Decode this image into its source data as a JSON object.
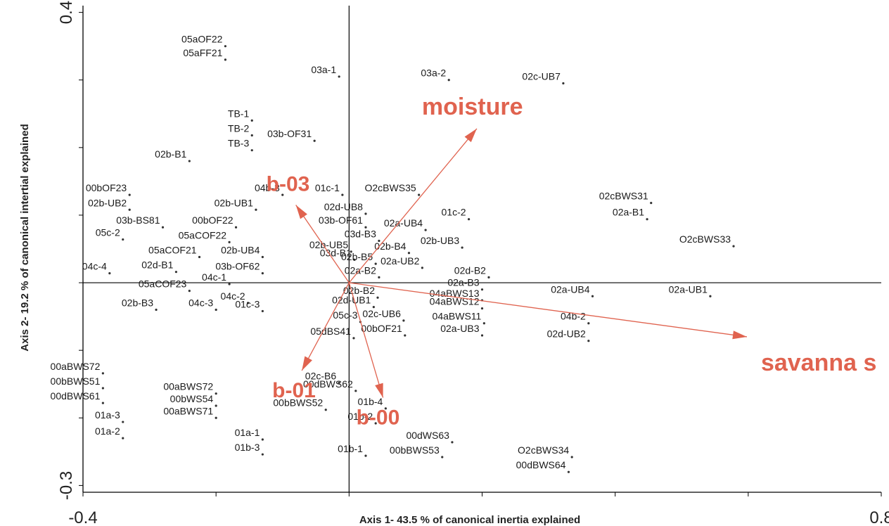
{
  "chart_data": {
    "type": "scatter",
    "xlabel": "Axis 1- 43.5 % of canonical inertia explained",
    "ylabel": "Axis 2- 19.2 % of canonical intertial explained",
    "xlim": [
      -0.4,
      0.8
    ],
    "ylim": [
      -0.31,
      0.41
    ],
    "x_ticks": [
      -0.4,
      0.8
    ],
    "y_ticks": [
      0.4,
      -0.3
    ],
    "accent_color": "#e0634f",
    "vectors": [
      {
        "name": "moisture",
        "x": 0.192,
        "y": 0.228
      },
      {
        "name": "savanna s",
        "x": 0.598,
        "y": -0.08
      },
      {
        "name": "b-03",
        "x": -0.08,
        "y": 0.115
      },
      {
        "name": "b-01",
        "x": -0.071,
        "y": -0.13
      },
      {
        "name": "b-00",
        "x": 0.051,
        "y": -0.17
      }
    ],
    "points": [
      {
        "label": "05aOF22",
        "x": -0.186,
        "y": 0.35
      },
      {
        "label": "05aFF21",
        "x": -0.186,
        "y": 0.33
      },
      {
        "label": "03a-1",
        "x": -0.015,
        "y": 0.305
      },
      {
        "label": "03a-2",
        "x": 0.15,
        "y": 0.3
      },
      {
        "label": "02c-UB7",
        "x": 0.322,
        "y": 0.295
      },
      {
        "label": "TB-1",
        "x": -0.146,
        "y": 0.24
      },
      {
        "label": "TB-2",
        "x": -0.146,
        "y": 0.218
      },
      {
        "label": "TB-3",
        "x": -0.146,
        "y": 0.196
      },
      {
        "label": "03b-OF31",
        "x": -0.052,
        "y": 0.21
      },
      {
        "label": "02b-B1",
        "x": -0.24,
        "y": 0.18
      },
      {
        "label": "00bOF23",
        "x": -0.33,
        "y": 0.13
      },
      {
        "label": "04b-3",
        "x": -0.1,
        "y": 0.13
      },
      {
        "label": "01c-1",
        "x": -0.01,
        "y": 0.13
      },
      {
        "label": "O2cBWS35",
        "x": 0.105,
        "y": 0.13
      },
      {
        "label": "02b-UB2",
        "x": -0.33,
        "y": 0.108
      },
      {
        "label": "02b-UB1",
        "x": -0.14,
        "y": 0.108
      },
      {
        "label": "02d-UB8",
        "x": 0.025,
        "y": 0.102
      },
      {
        "label": "01c-2",
        "x": 0.18,
        "y": 0.094
      },
      {
        "label": "02cBWS31",
        "x": 0.454,
        "y": 0.118
      },
      {
        "label": "02a-B1",
        "x": 0.448,
        "y": 0.094
      },
      {
        "label": "03b-BS81",
        "x": -0.28,
        "y": 0.082
      },
      {
        "label": "00bOF22",
        "x": -0.17,
        "y": 0.082
      },
      {
        "label": "03b-OF61",
        "x": 0.025,
        "y": 0.082
      },
      {
        "label": "02a-UB4",
        "x": 0.115,
        "y": 0.078
      },
      {
        "label": "05c-2",
        "x": -0.34,
        "y": 0.064
      },
      {
        "label": "05aCOF22",
        "x": -0.18,
        "y": 0.06
      },
      {
        "label": "03d-B3",
        "x": 0.045,
        "y": 0.062
      },
      {
        "label": "02b-UB5",
        "x": 0.003,
        "y": 0.046
      },
      {
        "label": "02b-B4",
        "x": 0.09,
        "y": 0.044
      },
      {
        "label": "02b-UB3",
        "x": 0.17,
        "y": 0.052
      },
      {
        "label": "O2cBWS33",
        "x": 0.578,
        "y": 0.054
      },
      {
        "label": "05aCOF21",
        "x": -0.225,
        "y": 0.038
      },
      {
        "label": "02b-UB4",
        "x": -0.13,
        "y": 0.038
      },
      {
        "label": "03d-B1",
        "x": 0.008,
        "y": 0.034
      },
      {
        "label": "02b-B5",
        "x": 0.04,
        "y": 0.028
      },
      {
        "label": "02a-UB2",
        "x": 0.11,
        "y": 0.022
      },
      {
        "label": "04c-4",
        "x": -0.36,
        "y": 0.014
      },
      {
        "label": "02d-B1",
        "x": -0.26,
        "y": 0.016
      },
      {
        "label": "03b-OF62",
        "x": -0.13,
        "y": 0.014
      },
      {
        "label": "02a-B2",
        "x": 0.045,
        "y": 0.008
      },
      {
        "label": "02d-B2",
        "x": 0.21,
        "y": 0.008
      },
      {
        "label": "05aCOF23",
        "x": -0.24,
        "y": -0.012
      },
      {
        "label": "04c-1",
        "x": -0.18,
        "y": -0.002
      },
      {
        "label": "02a-B3",
        "x": 0.2,
        "y": -0.01
      },
      {
        "label": "02b-B2",
        "x": 0.043,
        "y": -0.022
      },
      {
        "label": "04aBWS13",
        "x": 0.2,
        "y": -0.026
      },
      {
        "label": "02a-UB4",
        "x": 0.366,
        "y": -0.02
      },
      {
        "label": "02a-UB1",
        "x": 0.543,
        "y": -0.02
      },
      {
        "label": "02b-B3",
        "x": -0.29,
        "y": -0.04
      },
      {
        "label": "04c-3",
        "x": -0.2,
        "y": -0.04
      },
      {
        "label": "04c-2",
        "x": -0.152,
        "y": -0.03
      },
      {
        "label": "01c-3",
        "x": -0.13,
        "y": -0.042
      },
      {
        "label": "02d-UB1",
        "x": 0.037,
        "y": -0.036
      },
      {
        "label": "04aBWS12",
        "x": 0.2,
        "y": -0.038
      },
      {
        "label": "05c-3",
        "x": 0.017,
        "y": -0.058
      },
      {
        "label": "02c-UB6",
        "x": 0.082,
        "y": -0.056
      },
      {
        "label": "04aBWS11",
        "x": 0.203,
        "y": -0.06
      },
      {
        "label": "04b-2",
        "x": 0.36,
        "y": -0.06
      },
      {
        "label": "05dBS41",
        "x": 0.007,
        "y": -0.082
      },
      {
        "label": "00bOF21",
        "x": 0.084,
        "y": -0.078
      },
      {
        "label": "02a-UB3",
        "x": 0.2,
        "y": -0.078
      },
      {
        "label": "02d-UB2",
        "x": 0.36,
        "y": -0.086
      },
      {
        "label": "00aBWS72",
        "x": -0.37,
        "y": -0.134
      },
      {
        "label": "00bBWS51",
        "x": -0.37,
        "y": -0.156
      },
      {
        "label": "00dBWS61",
        "x": -0.37,
        "y": -0.178
      },
      {
        "label": "00aBWS72",
        "x": -0.2,
        "y": -0.164
      },
      {
        "label": "00bWS54",
        "x": -0.2,
        "y": -0.182
      },
      {
        "label": "00aBWS71",
        "x": -0.2,
        "y": -0.2
      },
      {
        "label": "02c-B6",
        "x": -0.015,
        "y": -0.148
      },
      {
        "label": "00dBWS62",
        "x": 0.01,
        "y": -0.16
      },
      {
        "label": "00bBWS52",
        "x": -0.035,
        "y": -0.188
      },
      {
        "label": "01b-4",
        "x": 0.055,
        "y": -0.186
      },
      {
        "label": "01b-2",
        "x": 0.04,
        "y": -0.208
      },
      {
        "label": "01a-3",
        "x": -0.34,
        "y": -0.206
      },
      {
        "label": "01a-2",
        "x": -0.34,
        "y": -0.23
      },
      {
        "label": "01a-1",
        "x": -0.13,
        "y": -0.232
      },
      {
        "label": "01b-3",
        "x": -0.13,
        "y": -0.254
      },
      {
        "label": "00dWS63",
        "x": 0.155,
        "y": -0.236
      },
      {
        "label": "01b-1",
        "x": 0.025,
        "y": -0.256
      },
      {
        "label": "00bBWS53",
        "x": 0.14,
        "y": -0.258
      },
      {
        "label": "O2cBWS34",
        "x": 0.335,
        "y": -0.258
      },
      {
        "label": "00dBWS64",
        "x": 0.33,
        "y": -0.28
      }
    ]
  }
}
